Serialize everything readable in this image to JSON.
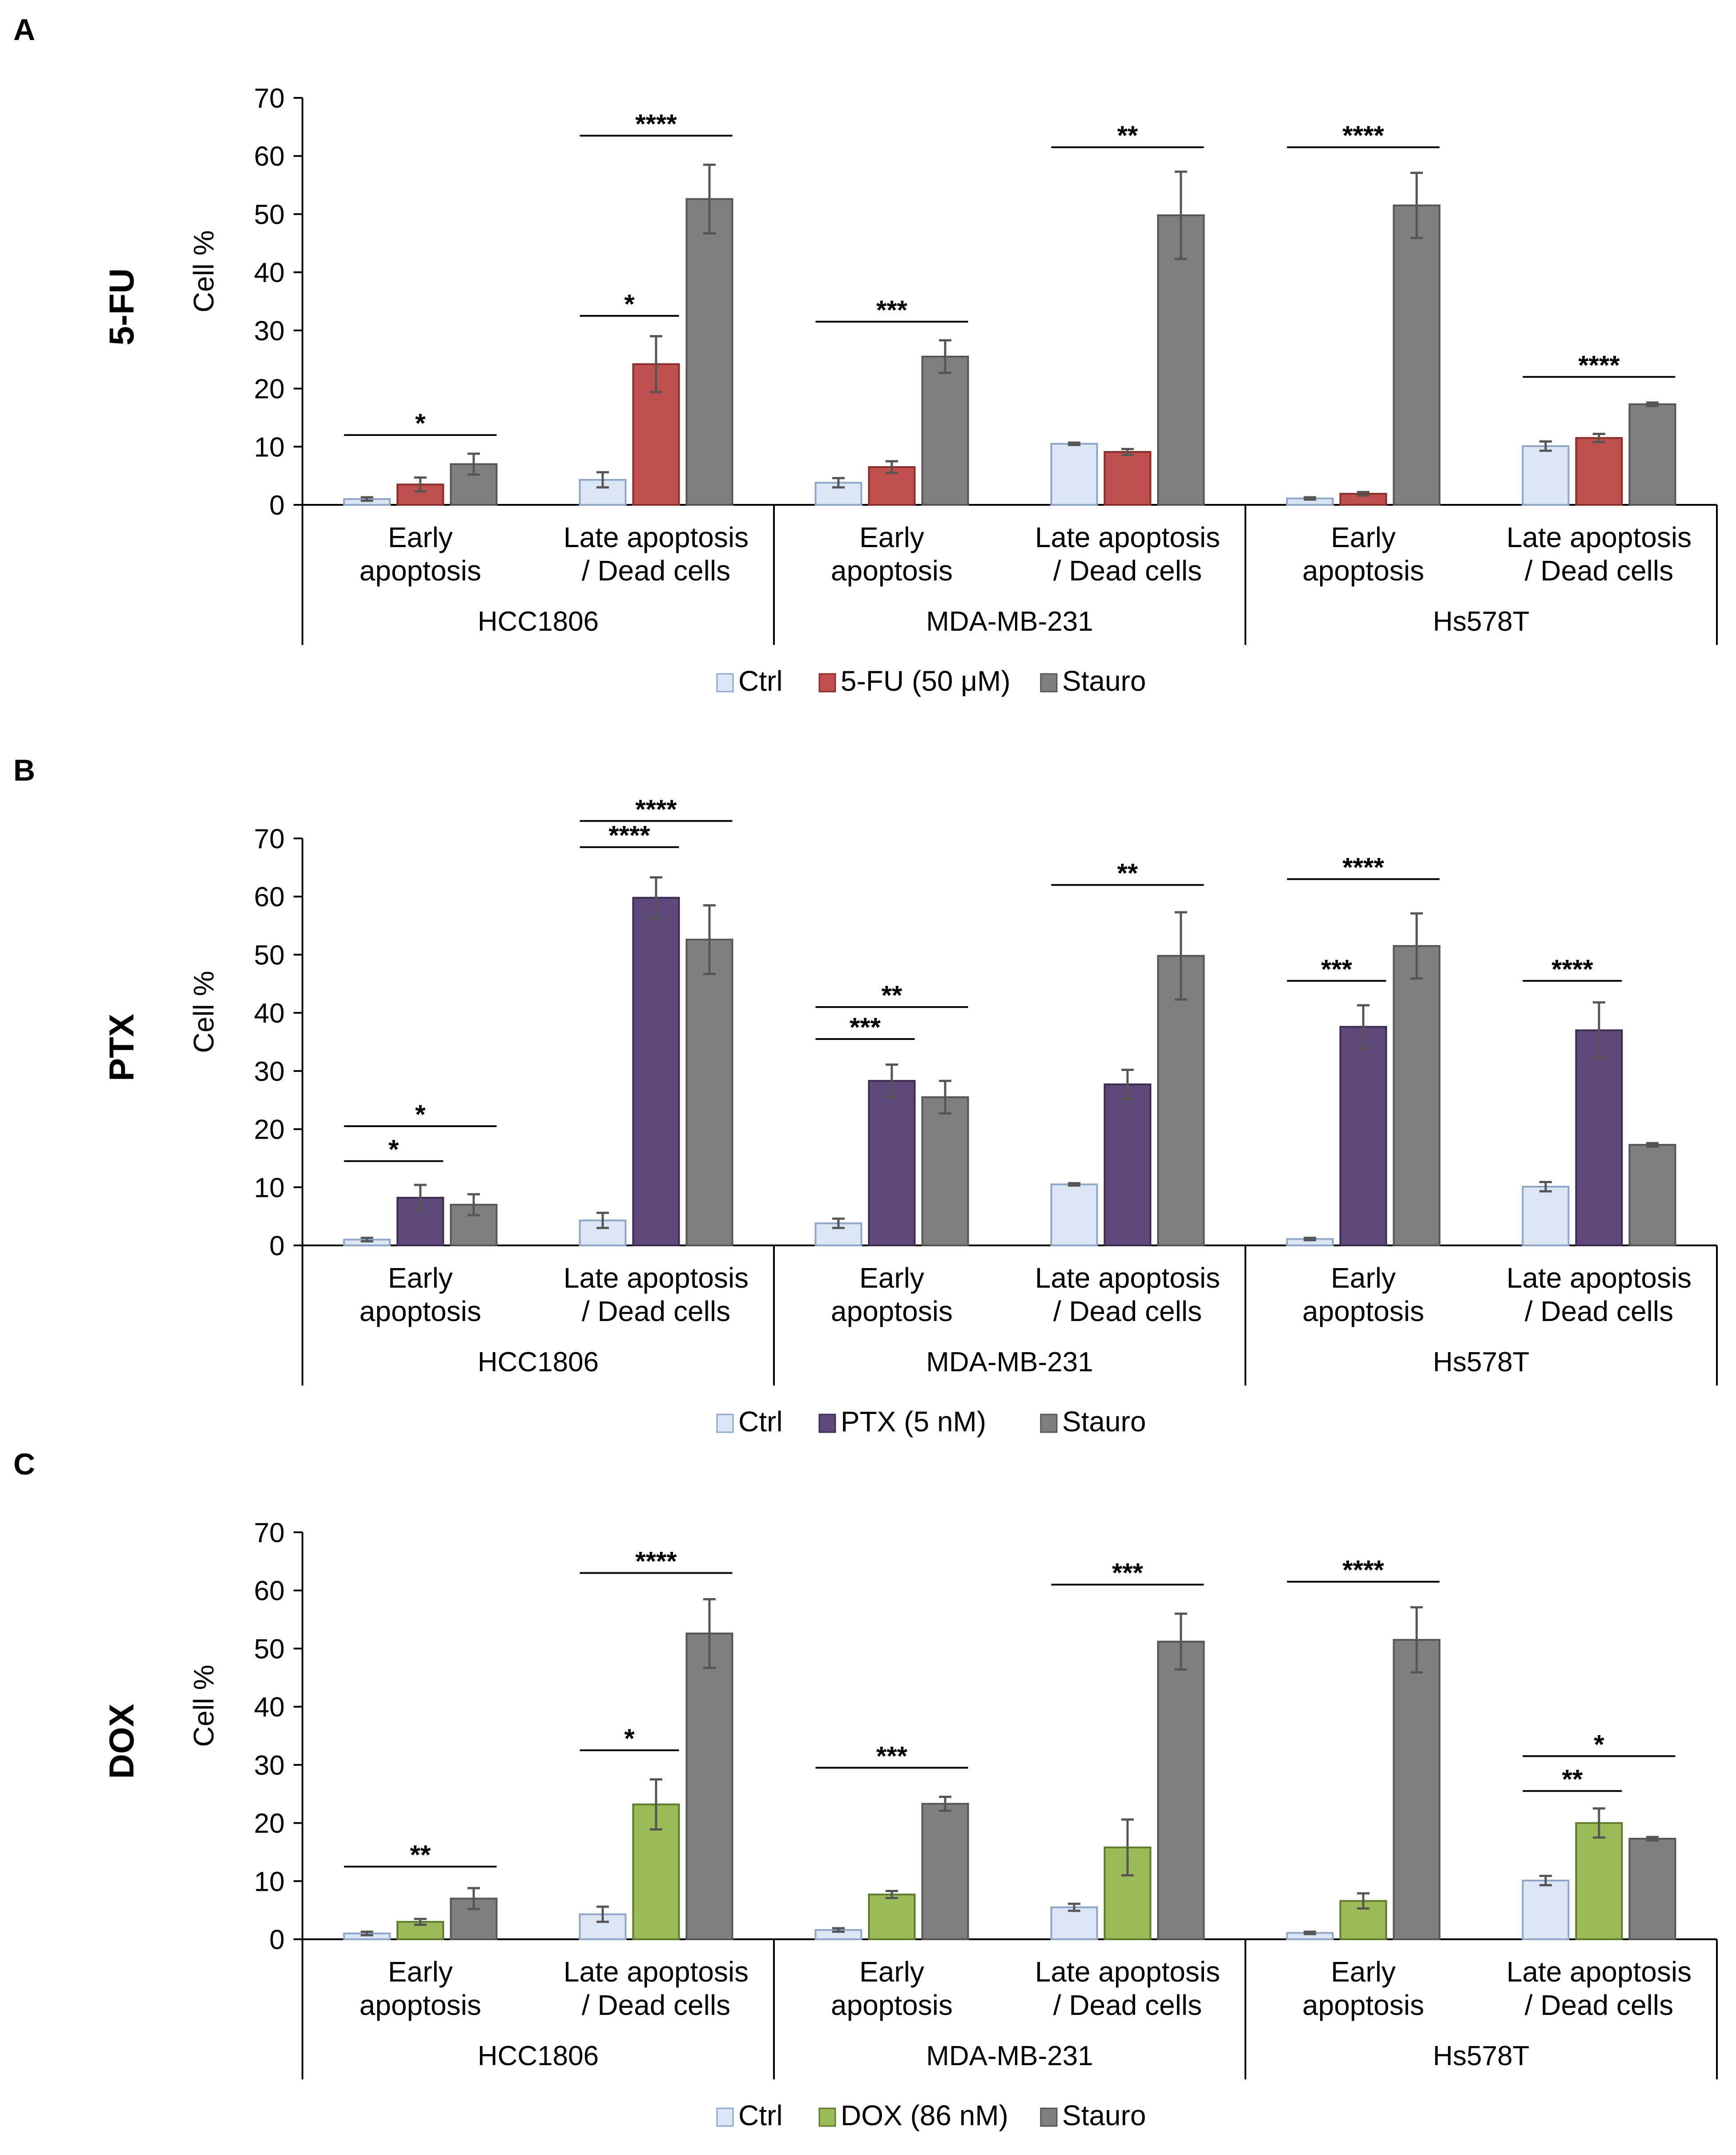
{
  "colors": {
    "ctrl_fill": "#dbe6f5",
    "ctrl_stroke": "#8fa6c8",
    "stauro_fill": "#7f7f7f",
    "stauro_stroke": "#555555",
    "axis": "#000000",
    "error": "#555555"
  },
  "chart_data": [
    {
      "panel_letter": "A",
      "drug_label": "5-FU",
      "type": "bar",
      "ylabel": "Cell %",
      "ylim": [
        0,
        70
      ],
      "yticks": [
        0,
        10,
        20,
        30,
        40,
        50,
        60,
        70
      ],
      "groups": [
        {
          "cell_line": "HCC1806",
          "categories": [
            [
              "Early",
              "apoptosis"
            ],
            [
              "Late apoptosis",
              "/ Dead cells"
            ]
          ]
        },
        {
          "cell_line": "MDA-MB-231",
          "categories": [
            [
              "Early",
              "apoptosis"
            ],
            [
              "Late apoptosis",
              "/ Dead cells"
            ]
          ]
        },
        {
          "cell_line": "Hs578T",
          "categories": [
            [
              "Early",
              "apoptosis"
            ],
            [
              "Late apoptosis",
              "/ Dead cells"
            ]
          ]
        }
      ],
      "series": [
        {
          "name": "Ctrl",
          "fill": "#dbe6f5",
          "stroke": "#8fa6c8",
          "values": [
            1.0,
            4.3,
            3.8,
            10.5,
            1.1,
            10.1
          ],
          "errors": [
            0.3,
            1.3,
            0.8,
            0.2,
            0.2,
            0.8
          ]
        },
        {
          "name": "5-FU (50 μM)",
          "fill": "#c0504d",
          "stroke": "#8b2d2a",
          "values": [
            3.5,
            24.2,
            6.5,
            9.1,
            1.9,
            11.5
          ],
          "errors": [
            1.2,
            4.8,
            1.0,
            0.5,
            0.3,
            0.7
          ]
        },
        {
          "name": "Stauro",
          "fill": "#7f7f7f",
          "stroke": "#555555",
          "values": [
            7.0,
            52.6,
            25.5,
            49.8,
            51.5,
            17.3
          ],
          "errors": [
            1.8,
            5.9,
            2.8,
            7.5,
            5.6,
            0.3
          ]
        }
      ],
      "significance": [
        {
          "label": "*",
          "category": 0,
          "from_series": 0,
          "to_series": 2,
          "y": 12
        },
        {
          "label": "*",
          "category": 1,
          "from_series": 0,
          "to_series": 1,
          "y": 32.5
        },
        {
          "label": "****",
          "category": 1,
          "from_series": 0,
          "to_series": 2,
          "y": 63.5
        },
        {
          "label": "***",
          "category": 2,
          "from_series": 0,
          "to_series": 2,
          "y": 31.5
        },
        {
          "label": "**",
          "category": 3,
          "from_series": 0,
          "to_series": 2,
          "y": 61.5
        },
        {
          "label": "****",
          "category": 4,
          "from_series": 0,
          "to_series": 2,
          "y": 61.5
        },
        {
          "label": "****",
          "category": 5,
          "from_series": 0,
          "to_series": 2,
          "y": 22
        }
      ]
    },
    {
      "panel_letter": "B",
      "drug_label": "PTX",
      "type": "bar",
      "ylabel": "Cell %",
      "ylim": [
        0,
        70
      ],
      "yticks": [
        0,
        10,
        20,
        30,
        40,
        50,
        60,
        70
      ],
      "groups": [
        {
          "cell_line": "HCC1806",
          "categories": [
            [
              "Early",
              "apoptosis"
            ],
            [
              "Late apoptosis",
              "/ Dead cells"
            ]
          ]
        },
        {
          "cell_line": "MDA-MB-231",
          "categories": [
            [
              "Early",
              "apoptosis"
            ],
            [
              "Late apoptosis",
              "/ Dead cells"
            ]
          ]
        },
        {
          "cell_line": "Hs578T",
          "categories": [
            [
              "Early",
              "apoptosis"
            ],
            [
              "Late apoptosis",
              "/ Dead cells"
            ]
          ]
        }
      ],
      "series": [
        {
          "name": "Ctrl",
          "fill": "#dbe6f5",
          "stroke": "#8fa6c8",
          "values": [
            1.0,
            4.3,
            3.8,
            10.5,
            1.1,
            10.1
          ],
          "errors": [
            0.3,
            1.3,
            0.8,
            0.2,
            0.2,
            0.8
          ]
        },
        {
          "name": "PTX (5 nM)",
          "fill": "#5f497a",
          "stroke": "#3b2b50",
          "values": [
            8.2,
            59.8,
            28.3,
            27.7,
            37.6,
            37.0
          ],
          "errors": [
            2.2,
            3.5,
            2.8,
            2.5,
            3.7,
            4.8
          ]
        },
        {
          "name": "Stauro",
          "fill": "#7f7f7f",
          "stroke": "#555555",
          "values": [
            7.0,
            52.6,
            25.5,
            49.8,
            51.5,
            17.3
          ],
          "errors": [
            1.8,
            5.9,
            2.8,
            7.5,
            5.6,
            0.3
          ]
        }
      ],
      "significance": [
        {
          "label": "*",
          "category": 0,
          "from_series": 0,
          "to_series": 1,
          "y": 14.5
        },
        {
          "label": "*",
          "category": 0,
          "from_series": 0,
          "to_series": 2,
          "y": 20.5
        },
        {
          "label": "****",
          "category": 1,
          "from_series": 0,
          "to_series": 1,
          "y": 68.5
        },
        {
          "label": "****",
          "category": 1,
          "from_series": 0,
          "to_series": 2,
          "y": 73
        },
        {
          "label": "***",
          "category": 2,
          "from_series": 0,
          "to_series": 1,
          "y": 35.5
        },
        {
          "label": "**",
          "category": 2,
          "from_series": 0,
          "to_series": 2,
          "y": 41
        },
        {
          "label": "**",
          "category": 3,
          "from_series": 0,
          "to_series": 2,
          "y": 62
        },
        {
          "label": "***",
          "category": 4,
          "from_series": 0,
          "to_series": 1,
          "y": 45.5
        },
        {
          "label": "****",
          "category": 4,
          "from_series": 0,
          "to_series": 2,
          "y": 63
        },
        {
          "label": "****",
          "category": 5,
          "from_series": 0,
          "to_series": 1,
          "y": 45.5
        }
      ]
    },
    {
      "panel_letter": "C",
      "drug_label": "DOX",
      "type": "bar",
      "ylabel": "Cell %",
      "ylim": [
        0,
        70
      ],
      "yticks": [
        0,
        10,
        20,
        30,
        40,
        50,
        60,
        70
      ],
      "groups": [
        {
          "cell_line": "HCC1806",
          "categories": [
            [
              "Early",
              "apoptosis"
            ],
            [
              "Late apoptosis",
              "/ Dead cells"
            ]
          ]
        },
        {
          "cell_line": "MDA-MB-231",
          "categories": [
            [
              "Early",
              "apoptosis"
            ],
            [
              "Late apoptosis",
              "/ Dead cells"
            ]
          ]
        },
        {
          "cell_line": "Hs578T",
          "categories": [
            [
              "Early",
              "apoptosis"
            ],
            [
              "Late apoptosis",
              "/ Dead cells"
            ]
          ]
        }
      ],
      "series": [
        {
          "name": "Ctrl",
          "fill": "#dbe6f5",
          "stroke": "#8fa6c8",
          "values": [
            1.0,
            4.3,
            1.6,
            5.5,
            1.1,
            10.1
          ],
          "errors": [
            0.3,
            1.3,
            0.3,
            0.6,
            0.2,
            0.8
          ]
        },
        {
          "name": "DOX (86 nM)",
          "fill": "#9bbb59",
          "stroke": "#5e7a2c",
          "values": [
            3.0,
            23.2,
            7.7,
            15.8,
            6.6,
            20.0
          ],
          "errors": [
            0.5,
            4.3,
            0.6,
            4.8,
            1.3,
            2.5
          ]
        },
        {
          "name": "Stauro",
          "fill": "#7f7f7f",
          "stroke": "#555555",
          "values": [
            7.0,
            52.6,
            23.3,
            51.2,
            51.5,
            17.3
          ],
          "errors": [
            1.8,
            5.9,
            1.2,
            4.8,
            5.6,
            0.3
          ]
        }
      ],
      "significance": [
        {
          "label": "**",
          "category": 0,
          "from_series": 0,
          "to_series": 2,
          "y": 12.5
        },
        {
          "label": "*",
          "category": 1,
          "from_series": 0,
          "to_series": 1,
          "y": 32.5
        },
        {
          "label": "****",
          "category": 1,
          "from_series": 0,
          "to_series": 2,
          "y": 63
        },
        {
          "label": "***",
          "category": 2,
          "from_series": 0,
          "to_series": 2,
          "y": 29.5
        },
        {
          "label": "***",
          "category": 3,
          "from_series": 0,
          "to_series": 2,
          "y": 61
        },
        {
          "label": "****",
          "category": 4,
          "from_series": 0,
          "to_series": 2,
          "y": 61.5
        },
        {
          "label": "**",
          "category": 5,
          "from_series": 0,
          "to_series": 1,
          "y": 25.5
        },
        {
          "label": "*",
          "category": 5,
          "from_series": 0,
          "to_series": 2,
          "y": 31.5
        }
      ]
    }
  ]
}
